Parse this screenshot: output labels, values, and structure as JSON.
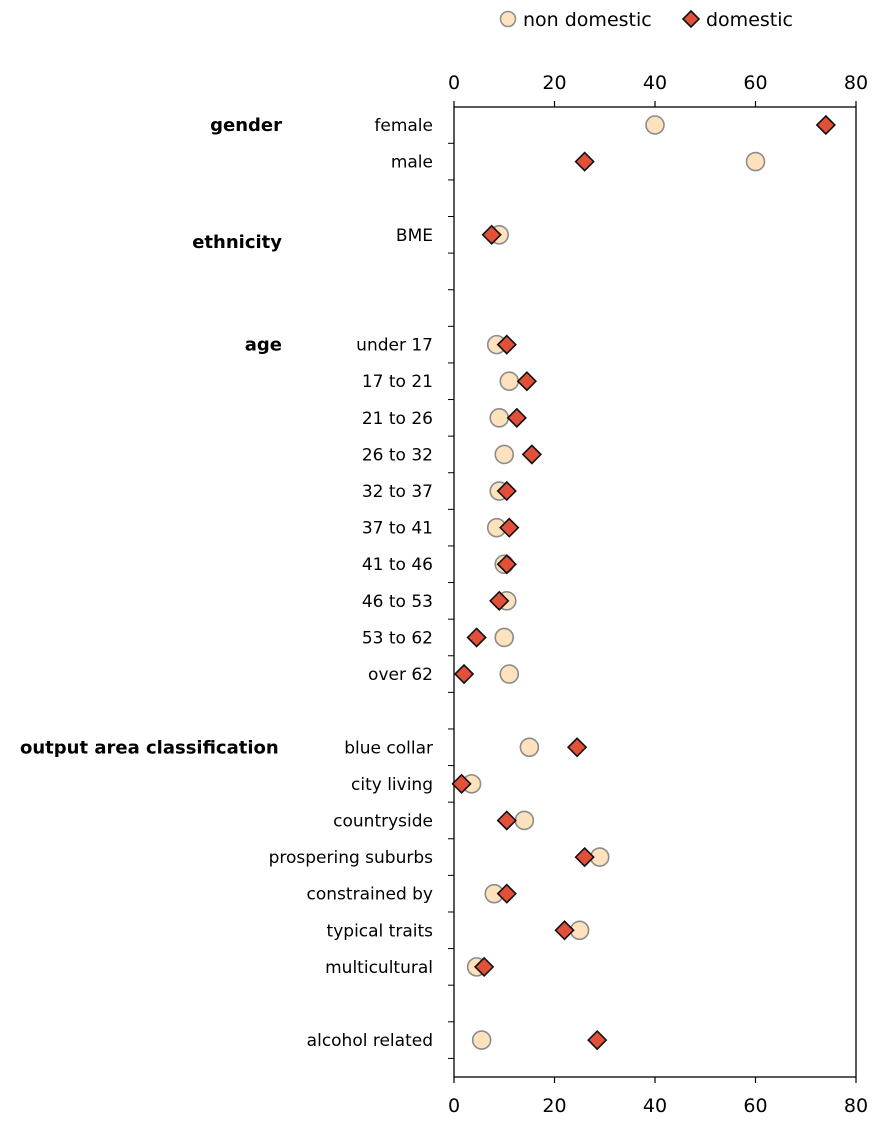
{
  "chart_data": {
    "type": "scatter",
    "orientation": "horizontal",
    "xlim": [
      0,
      80
    ],
    "x_ticks": [
      "0",
      "20",
      "40",
      "60",
      "80"
    ],
    "legend": {
      "placement": "top-right",
      "entries": [
        {
          "name": "non domestic",
          "marker": "circle",
          "color": "#fde2bd",
          "stroke": "#8c8c8c"
        },
        {
          "name": "domestic",
          "marker": "diamond",
          "color": "#e2503a",
          "stroke": "#111111"
        }
      ]
    },
    "series_order": [
      "non domestic",
      "domestic"
    ],
    "groups": [
      {
        "label": "gender",
        "row": 0
      },
      {
        "label": "ethnicity",
        "row": 3
      },
      {
        "label": "age",
        "row": 6
      },
      {
        "label": "output area classification",
        "row": 17
      }
    ],
    "total_rows": 26,
    "rows": [
      {
        "row": 0,
        "label": "female",
        "non_domestic": 40,
        "domestic": 74
      },
      {
        "row": 1,
        "label": "male",
        "non_domestic": 60,
        "domestic": 26
      },
      {
        "row": 3,
        "label": "BME",
        "non_domestic": 9,
        "domestic": 7.5
      },
      {
        "row": 6,
        "label": "under 17",
        "non_domestic": 8.5,
        "domestic": 10.5
      },
      {
        "row": 7,
        "label": "17 to 21",
        "non_domestic": 11,
        "domestic": 14.5
      },
      {
        "row": 8,
        "label": "21 to 26",
        "non_domestic": 9,
        "domestic": 12.5
      },
      {
        "row": 9,
        "label": "26 to 32",
        "non_domestic": 10,
        "domestic": 15.5
      },
      {
        "row": 10,
        "label": "32 to 37",
        "non_domestic": 9,
        "domestic": 10.5
      },
      {
        "row": 11,
        "label": "37 to 41",
        "non_domestic": 8.5,
        "domestic": 11
      },
      {
        "row": 12,
        "label": "41 to 46",
        "non_domestic": 10,
        "domestic": 10.5
      },
      {
        "row": 13,
        "label": "46 to 53",
        "non_domestic": 10.5,
        "domestic": 9
      },
      {
        "row": 14,
        "label": "53 to 62",
        "non_domestic": 10,
        "domestic": 4.5
      },
      {
        "row": 15,
        "label": "over 62",
        "non_domestic": 11,
        "domestic": 2
      },
      {
        "row": 17,
        "label": "blue collar",
        "non_domestic": 15,
        "domestic": 24.5
      },
      {
        "row": 18,
        "label": "city living",
        "non_domestic": 3.5,
        "domestic": 1.5
      },
      {
        "row": 19,
        "label": "countryside",
        "non_domestic": 14,
        "domestic": 10.5
      },
      {
        "row": 20,
        "label": "prospering suburbs",
        "non_domestic": 29,
        "domestic": 26
      },
      {
        "row": 21,
        "label": "constrained by",
        "non_domestic": 8,
        "domestic": 10.5
      },
      {
        "row": 22,
        "label": "typical traits",
        "non_domestic": 25,
        "domestic": 22
      },
      {
        "row": 23,
        "label": "multicultural",
        "non_domestic": 4.5,
        "domestic": 6
      },
      {
        "row": 25,
        "label": "alcohol related",
        "non_domestic": 5.5,
        "domestic": 28.5
      }
    ]
  }
}
